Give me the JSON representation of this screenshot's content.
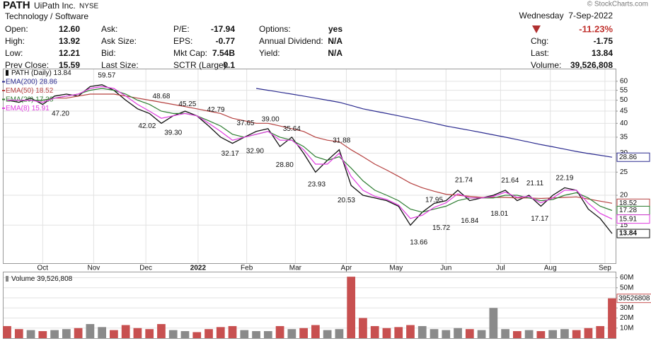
{
  "header": {
    "symbol": "PATH",
    "name": "UiPath Inc.",
    "exchange": "NYSE",
    "sector": "Technology / Software",
    "source": "© StockCharts.com",
    "date": "Wednesday  7-Sep-2022",
    "change_pct": "-11.23%",
    "quote": [
      [
        {
          "label": "Open:",
          "value": "12.60"
        },
        {
          "label": "Ask:"
        },
        {
          "label": "P/E:",
          "value": "-17.94"
        },
        {
          "label": "Options:",
          "value": "yes"
        }
      ],
      [
        {
          "label": "High:",
          "value": "13.92"
        },
        {
          "label": "Ask Size:"
        },
        {
          "label": "EPS:",
          "value": "-0.77"
        },
        {
          "label": "Annual Dividend:",
          "value": "N/A"
        }
      ],
      [
        {
          "label": "Low:",
          "value": "12.21"
        },
        {
          "label": "Bid:"
        },
        {
          "label": "Mkt Cap:",
          "value": "7.54B"
        },
        {
          "label": "Yield:",
          "value": "N/A"
        }
      ],
      [
        {
          "label": "Prev Close:",
          "value": "15.59"
        },
        {
          "label": "Last Size:"
        },
        {
          "label": "SCTR (Large):",
          "value": "0.1"
        }
      ]
    ],
    "summary": [
      {
        "label": "Chg:",
        "value": "-1.75"
      },
      {
        "label": "Last:",
        "value": "13.84"
      },
      {
        "label": "Volume:",
        "value": "39,526,808"
      }
    ]
  },
  "chart_data": [
    {
      "type": "line",
      "log_scale": true,
      "grid": true,
      "x": [
        0,
        1,
        2,
        3,
        4,
        5,
        6,
        7,
        8,
        9,
        10,
        11,
        12,
        13,
        14,
        15,
        16,
        17,
        18,
        19,
        20,
        21,
        22,
        23,
        24,
        25,
        26,
        27,
        28,
        29,
        30,
        31,
        32,
        33,
        34,
        35,
        36,
        37,
        38,
        39,
        40,
        41,
        42,
        43,
        44,
        45,
        46,
        47,
        48,
        49,
        50,
        51
      ],
      "xlim": [
        -0.3,
        51.3
      ],
      "xticks": [
        {
          "value": 3.0,
          "label": "Oct"
        },
        {
          "value": 7.3,
          "label": "Nov"
        },
        {
          "value": 11.7,
          "label": "Dec"
        },
        {
          "value": 16.1,
          "label": "2022"
        },
        {
          "value": 20.2,
          "label": "Feb"
        },
        {
          "value": 24.3,
          "label": "Mar"
        },
        {
          "value": 28.6,
          "label": "Apr"
        },
        {
          "value": 32.8,
          "label": "May"
        },
        {
          "value": 37.0,
          "label": "Jun"
        },
        {
          "value": 41.6,
          "label": "Jul"
        },
        {
          "value": 45.8,
          "label": "Aug"
        },
        {
          "value": 50.4,
          "label": "Sep"
        }
      ],
      "ylim": [
        10.4,
        67.3
      ],
      "yticks": [
        15,
        20,
        25,
        30,
        35,
        40,
        45,
        50,
        55,
        60
      ],
      "series": [
        {
          "name": "PATH (Daily)",
          "color": "#111111",
          "values": [
            50,
            49,
            51,
            48,
            52,
            53,
            52,
            57,
            58,
            55,
            50,
            46,
            44,
            40,
            43,
            45,
            43,
            39,
            35,
            33,
            35,
            37,
            38,
            32,
            35,
            30,
            25,
            28,
            31,
            22,
            20,
            19.5,
            19,
            18,
            15,
            17,
            18.5,
            19,
            21,
            19,
            19.5,
            20,
            21,
            19,
            20,
            18,
            20,
            21.5,
            21,
            17.5,
            16,
            13.84
          ]
        },
        {
          "name": "EMA(200)",
          "color": "#2b2b8f",
          "values": [
            null,
            null,
            null,
            null,
            null,
            null,
            null,
            null,
            null,
            null,
            null,
            null,
            null,
            null,
            null,
            null,
            null,
            null,
            null,
            null,
            null,
            56,
            55,
            54,
            53,
            52,
            51,
            50,
            49,
            47.5,
            46,
            45,
            44,
            43,
            42,
            41,
            40,
            39,
            38.2,
            37.4,
            36.6,
            35.8,
            35,
            34.2,
            33.4,
            32.6,
            31.9,
            31.2,
            30.5,
            29.9,
            29.4,
            28.86
          ]
        },
        {
          "name": "EMA(50)",
          "color": "#b5403f",
          "values": [
            50,
            50,
            50,
            50,
            51,
            51,
            52,
            53,
            53,
            53,
            52,
            51,
            50,
            49,
            48,
            47,
            46,
            45,
            44,
            42,
            41,
            40,
            40,
            39,
            38,
            37,
            35,
            34,
            33.5,
            31,
            29,
            27,
            25.5,
            24,
            22.5,
            21.5,
            20.8,
            20.2,
            20,
            19.8,
            19.6,
            19.6,
            19.6,
            19.5,
            19.5,
            19.4,
            19.5,
            19.6,
            19.7,
            19.3,
            18.9,
            18.52
          ]
        },
        {
          "name": "EMA(20)",
          "color": "#2e7d32",
          "values": [
            50,
            50,
            50,
            50,
            51,
            52,
            53,
            55,
            56,
            55,
            53,
            50,
            48,
            45,
            44,
            44,
            43,
            41,
            39,
            36,
            35,
            36,
            37,
            35,
            34,
            32,
            29,
            28,
            29,
            26,
            23,
            21,
            20,
            19,
            17.5,
            17,
            17.5,
            18,
            19,
            19.5,
            19.5,
            19.5,
            20,
            20,
            19.5,
            19,
            19.2,
            20,
            20.5,
            19.5,
            18,
            17.28
          ]
        },
        {
          "name": "EMA(8)",
          "color": "#e03ce0",
          "values": [
            50,
            50,
            50,
            49,
            51,
            52,
            53,
            56,
            57,
            56,
            52,
            48,
            45,
            42,
            43,
            44,
            43,
            40,
            37,
            34,
            35,
            36,
            37,
            34,
            34,
            31,
            27,
            27,
            30,
            24,
            21,
            19.8,
            19.2,
            18.2,
            16,
            16.5,
            17.8,
            18.6,
            20.3,
            19.5,
            19.5,
            19.8,
            20.6,
            19.6,
            19.8,
            18.6,
            19.5,
            21,
            21,
            18.5,
            16.8,
            15.91
          ]
        }
      ],
      "annotations": [
        {
          "x": 8.4,
          "y": 59.57,
          "label": "59.57",
          "position": "above"
        },
        {
          "x": 4.5,
          "y": 47.2,
          "label": "47.20",
          "position": "below"
        },
        {
          "x": 13.0,
          "y": 48.68,
          "label": "48.68",
          "position": "above"
        },
        {
          "x": 11.8,
          "y": 42.02,
          "label": "42.02",
          "position": "below"
        },
        {
          "x": 15.2,
          "y": 45.25,
          "label": "45.25",
          "position": "above"
        },
        {
          "x": 14.0,
          "y": 39.3,
          "label": "39.30",
          "position": "below"
        },
        {
          "x": 17.6,
          "y": 42.79,
          "label": "42.79",
          "position": "above"
        },
        {
          "x": 18.8,
          "y": 32.17,
          "label": "32.17",
          "position": "below"
        },
        {
          "x": 20.1,
          "y": 37.65,
          "label": "37.65",
          "position": "above"
        },
        {
          "x": 20.9,
          "y": 32.9,
          "label": "32.90",
          "position": "below"
        },
        {
          "x": 22.2,
          "y": 39.0,
          "label": "39.00",
          "position": "above"
        },
        {
          "x": 24.0,
          "y": 35.64,
          "label": "35.64",
          "position": "above"
        },
        {
          "x": 23.4,
          "y": 28.8,
          "label": "28.80",
          "position": "below"
        },
        {
          "x": 28.2,
          "y": 31.88,
          "label": "31.88",
          "position": "above"
        },
        {
          "x": 26.1,
          "y": 23.93,
          "label": "23.93",
          "position": "below"
        },
        {
          "x": 28.6,
          "y": 20.53,
          "label": "20.53",
          "position": "below"
        },
        {
          "x": 34.7,
          "y": 13.66,
          "label": "13.66",
          "position": "below"
        },
        {
          "x": 36.0,
          "y": 17.95,
          "label": "17.95",
          "position": "above"
        },
        {
          "x": 36.6,
          "y": 15.72,
          "label": "15.72",
          "position": "below"
        },
        {
          "x": 38.5,
          "y": 21.74,
          "label": "21.74",
          "position": "above"
        },
        {
          "x": 39.0,
          "y": 16.84,
          "label": "16.84",
          "position": "below"
        },
        {
          "x": 42.4,
          "y": 21.64,
          "label": "21.64",
          "position": "above"
        },
        {
          "x": 41.5,
          "y": 18.01,
          "label": "18.01",
          "position": "below"
        },
        {
          "x": 44.5,
          "y": 21.11,
          "label": "21.11",
          "position": "above"
        },
        {
          "x": 44.9,
          "y": 17.17,
          "label": "17.17",
          "position": "below"
        },
        {
          "x": 47.0,
          "y": 22.19,
          "label": "22.19",
          "position": "above"
        }
      ]
    },
    {
      "type": "bar",
      "grid": true,
      "x": [
        0,
        1,
        2,
        3,
        4,
        5,
        6,
        7,
        8,
        9,
        10,
        11,
        12,
        13,
        14,
        15,
        16,
        17,
        18,
        19,
        20,
        21,
        22,
        23,
        24,
        25,
        26,
        27,
        28,
        29,
        30,
        31,
        32,
        33,
        34,
        35,
        36,
        37,
        38,
        39,
        40,
        41,
        42,
        43,
        44,
        45,
        46,
        47,
        48,
        49,
        50,
        51
      ],
      "xlim": [
        -0.3,
        51.3
      ],
      "ylim": [
        0,
        65300000
      ],
      "yticks": [
        {
          "value": 10000000,
          "label": "10M"
        },
        {
          "value": 20000000,
          "label": "20M"
        },
        {
          "value": 30000000,
          "label": "30M"
        },
        {
          "value": 40000000,
          "label": "40M"
        },
        {
          "value": 50000000,
          "label": "50M"
        },
        {
          "value": 60000000,
          "label": "60M"
        }
      ],
      "series": [
        {
          "name": "Volume",
          "color": "#c85050",
          "up_color": "#8a8a8a",
          "values": [
            12000000,
            9000000,
            8000000,
            7000000,
            8000000,
            9000000,
            10000000,
            14000000,
            11000000,
            8000000,
            13000000,
            10000000,
            9000000,
            14000000,
            8000000,
            7000000,
            6000000,
            9000000,
            11000000,
            12000000,
            8000000,
            7000000,
            7000000,
            12000000,
            9000000,
            10000000,
            13000000,
            8000000,
            9000000,
            61000000,
            20000000,
            12000000,
            10000000,
            11000000,
            13000000,
            12000000,
            9000000,
            8000000,
            10000000,
            9000000,
            8000000,
            30000000,
            9000000,
            7000000,
            8000000,
            7000000,
            8000000,
            9000000,
            8000000,
            10000000,
            12000000,
            39526808
          ],
          "value_labels": [
            null,
            null,
            null,
            null,
            null,
            null,
            null,
            null,
            null,
            null,
            null,
            null,
            null,
            null,
            null,
            null,
            null,
            null,
            null,
            null,
            null,
            null,
            null,
            null,
            null,
            null,
            null,
            null,
            null,
            null,
            null,
            null,
            null,
            null,
            null,
            null,
            null,
            null,
            null,
            null,
            null,
            null,
            null,
            null,
            null,
            null,
            null,
            null,
            null,
            null,
            null,
            "39,526,808"
          ]
        }
      ]
    }
  ]
}
